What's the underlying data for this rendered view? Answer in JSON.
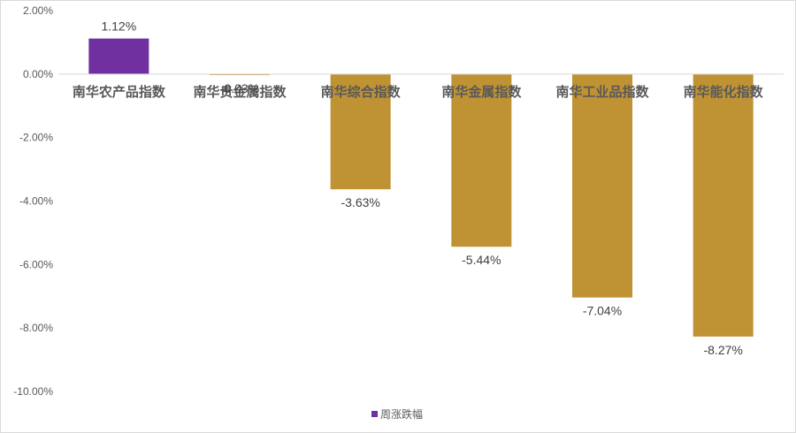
{
  "chart_data": {
    "type": "bar",
    "categories": [
      "南华农产品指数",
      "南华贵金属指数",
      "南华综合指数",
      "南华金属指数",
      "南华工业品指数",
      "南华能化指数"
    ],
    "series": [
      {
        "name": "周涨跌幅",
        "values": [
          1.12,
          -0.03,
          -3.63,
          -5.44,
          -7.04,
          -8.27
        ],
        "data_labels": [
          "1.12%",
          "-0.03%",
          "-3.63%",
          "-5.44%",
          "-7.04%",
          "-8.27%"
        ]
      }
    ],
    "ylim": [
      -10,
      2
    ],
    "ytick_values": [
      2,
      0,
      -2,
      -4,
      -6,
      -8,
      -10
    ],
    "ytick_labels": [
      "2.00%",
      "0.00%",
      "-2.00%",
      "-4.00%",
      "-6.00%",
      "-8.00%",
      "-10.00%"
    ],
    "colors": {
      "positive": "#7030a0",
      "negative": "#bf9234",
      "axis": "#d9d9d9"
    },
    "grid": false,
    "legend_position": "bottom"
  }
}
